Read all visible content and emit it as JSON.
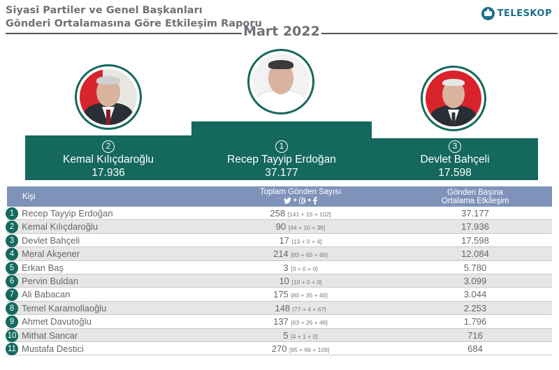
{
  "title": {
    "line1": "Siyasi Partiler ve Genel Başkanları",
    "line2": "Gönderi Ortalamasına Göre Etkileşim Raporu",
    "month": "Mart 2022"
  },
  "brand": {
    "logo_text": "TELESKOP",
    "icon": "teleskop-tv-icon",
    "color": "#1f6f8b"
  },
  "colors": {
    "podium": "#14685d",
    "table_header": "#7f93ba",
    "row_alt": "#e6e6e6"
  },
  "podium": {
    "first": {
      "rank": "1",
      "name": "Recep Tayyip Erdoğan",
      "value": "37.177"
    },
    "second": {
      "rank": "2",
      "name": "Kemal Kılıçdaroğlu",
      "value": "17.936"
    },
    "third": {
      "rank": "3",
      "name": "Devlet Bahçeli",
      "value": "17.598"
    }
  },
  "chart_data": {
    "type": "table",
    "columns": {
      "person": "Kişi",
      "total_posts": "Toplam Gönderi Sayısı",
      "total_posts_icons": [
        "twitter-icon",
        "instagram-icon",
        "facebook-icon"
      ],
      "engagement_line1": "Gönderi Başına",
      "engagement_line2": "Ortalama Etkileşim"
    },
    "rows": [
      {
        "rank": "1",
        "name": "Recep Tayyip Erdoğan",
        "total": "258",
        "breakdown": "[141 + 15 + 102]",
        "engagement": "37.177"
      },
      {
        "rank": "2",
        "name": "Kemal Kılıçdaroğlu",
        "total": "90",
        "breakdown": "[44 + 10 + 36]",
        "engagement": "17.936"
      },
      {
        "rank": "3",
        "name": "Devlet Bahçeli",
        "total": "17",
        "breakdown": "[13 + 0 + 4]",
        "engagement": "17.598"
      },
      {
        "rank": "4",
        "name": "Meral Akşener",
        "total": "214",
        "breakdown": "[83 + 65 + 66]",
        "engagement": "12.084"
      },
      {
        "rank": "5",
        "name": "Erkan Baş",
        "total": "3",
        "breakdown": "[3 + 0 + 0]",
        "engagement": "5.780"
      },
      {
        "rank": "6",
        "name": "Pervin Buldan",
        "total": "10",
        "breakdown": "[10 + 0 + 0]",
        "engagement": "3.099"
      },
      {
        "rank": "7",
        "name": "Ali Babacan",
        "total": "175",
        "breakdown": "[80 + 35 + 60]",
        "engagement": "3.044"
      },
      {
        "rank": "8",
        "name": "Temel Karamollaoğlu",
        "total": "148",
        "breakdown": "[77 + 4 + 67]",
        "engagement": "2.253"
      },
      {
        "rank": "9",
        "name": "Ahmet Davutoğlu",
        "total": "137",
        "breakdown": "[63 + 26 + 48]",
        "engagement": "1.796"
      },
      {
        "rank": "10",
        "name": "Mithat Sancar",
        "total": "5",
        "breakdown": "[4 + 1 + 0]",
        "engagement": "716"
      },
      {
        "rank": "11",
        "name": "Mustafa Destici",
        "total": "270",
        "breakdown": "[95 + 66 + 109]",
        "engagement": "684"
      }
    ]
  }
}
